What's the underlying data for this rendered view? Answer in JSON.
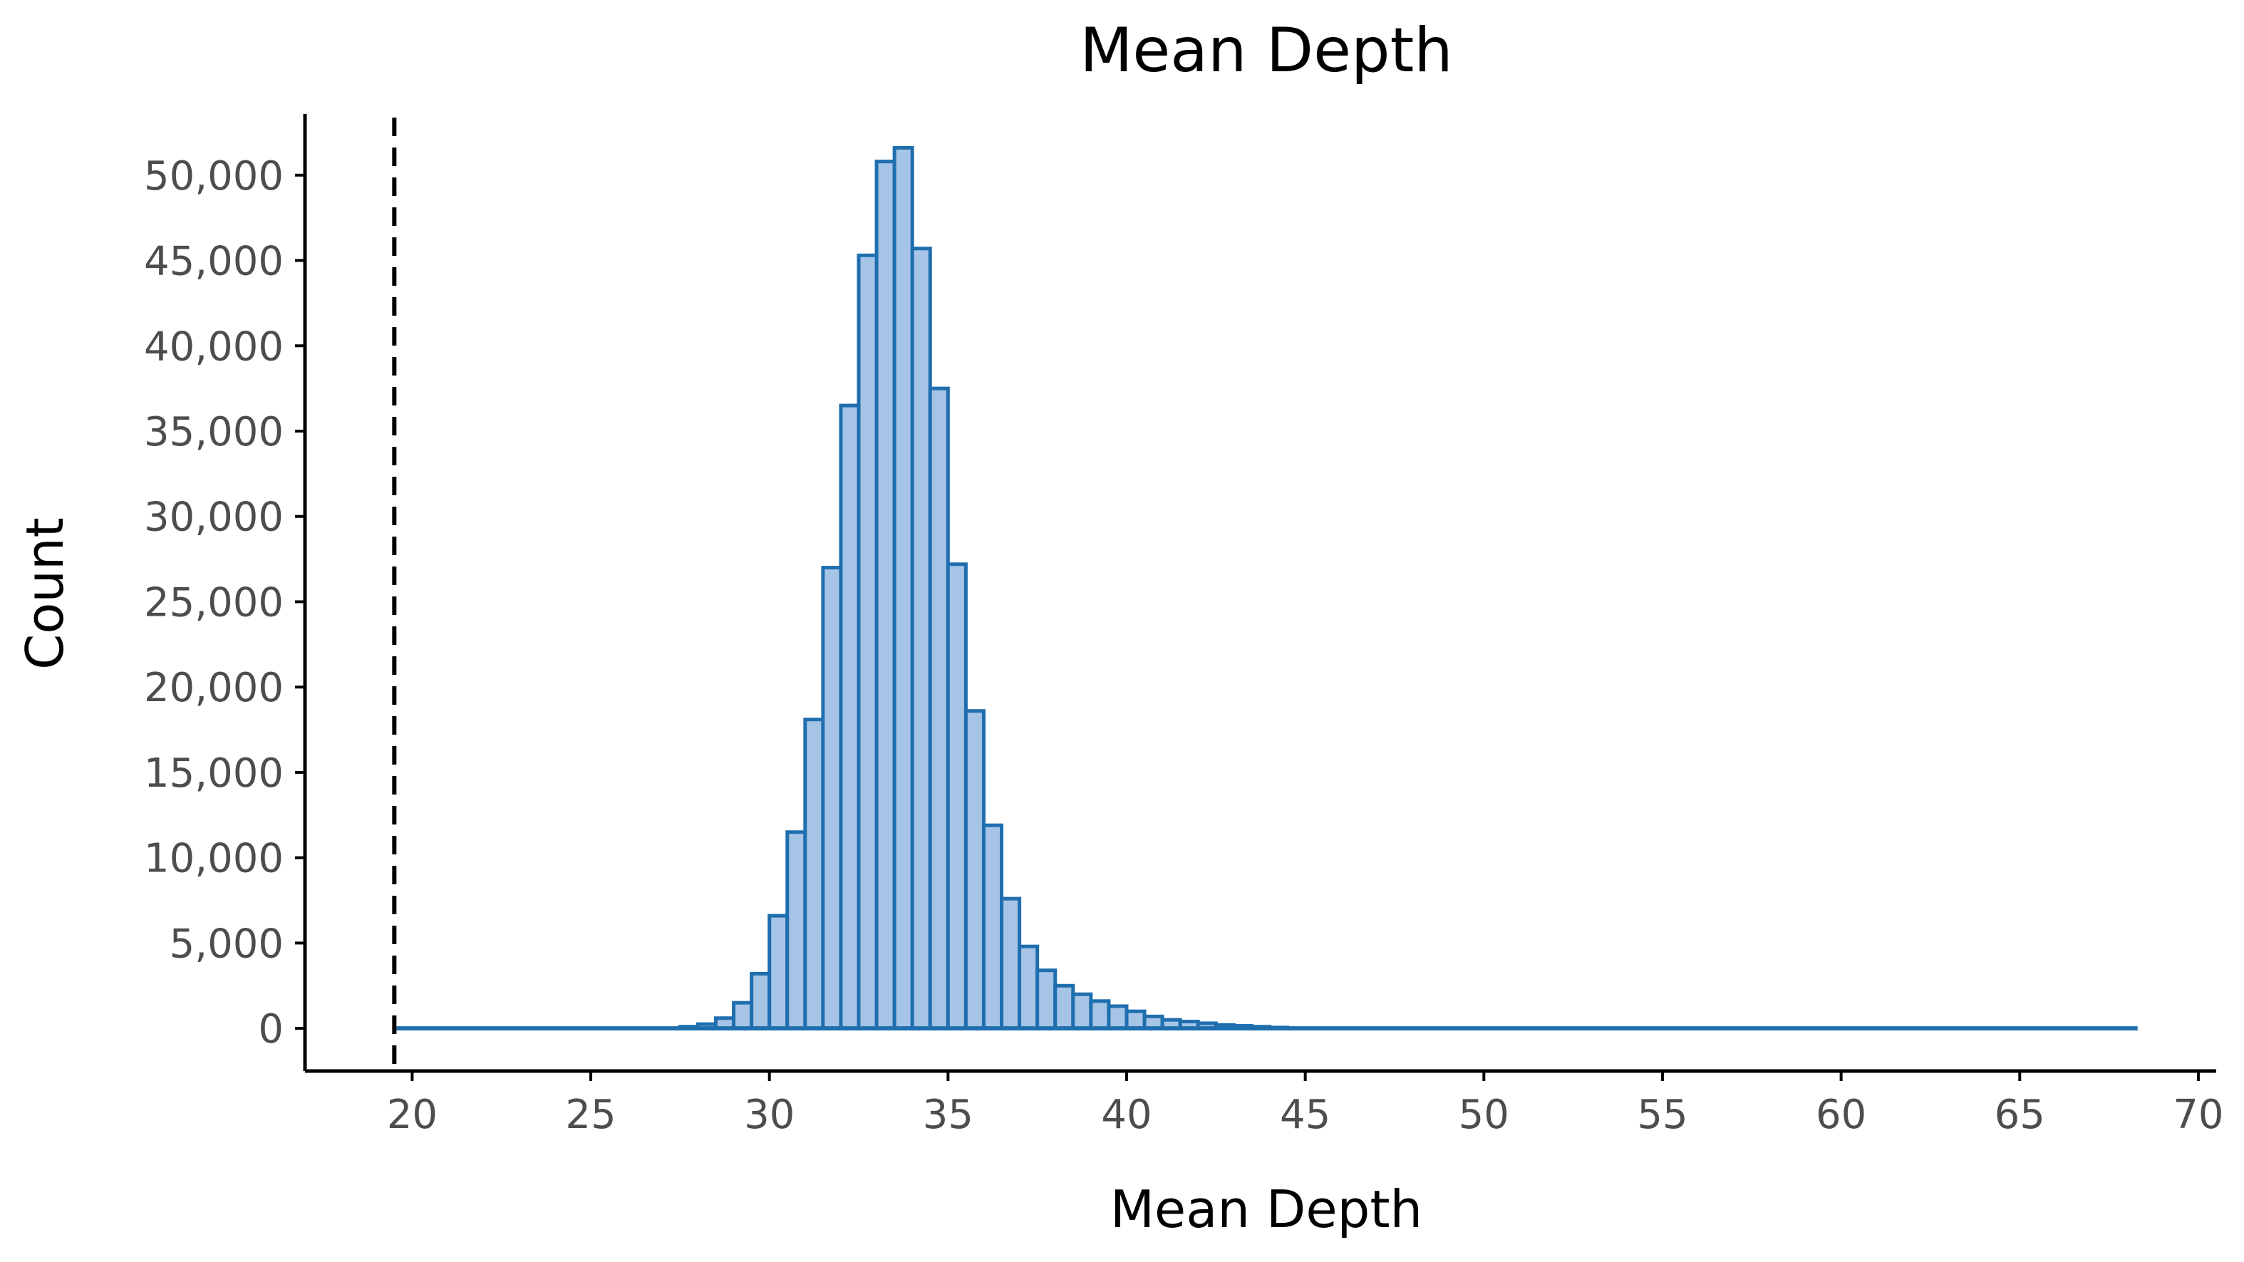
{
  "chart_data": {
    "type": "bar",
    "title": "Mean Depth",
    "xlabel": "Mean Depth",
    "ylabel": "Count",
    "xlim": [
      17,
      70.5
    ],
    "ylim": [
      -2500,
      54000
    ],
    "x_ticks": [
      20,
      25,
      30,
      35,
      40,
      45,
      50,
      55,
      60,
      65,
      70
    ],
    "x_tick_labels": [
      "20",
      "25",
      "30",
      "35",
      "40",
      "45",
      "50",
      "55",
      "60",
      "65",
      "70"
    ],
    "y_ticks": [
      0,
      5000,
      10000,
      15000,
      20000,
      25000,
      30000,
      35000,
      40000,
      45000,
      50000
    ],
    "y_tick_labels": [
      "0",
      "5,000",
      "10,000",
      "15,000",
      "20,000",
      "25,000",
      "30,000",
      "35,000",
      "40,000",
      "45,000",
      "50,000"
    ],
    "grid": false,
    "bin_width": 0.5,
    "threshold_x": 19.5,
    "colors": {
      "bar_fill": "#a6c4e6",
      "bar_edge": "#1f6faf",
      "threshold": "#000000"
    },
    "bins_start": [
      27.5,
      28.0,
      28.5,
      29.0,
      29.5,
      30.0,
      30.5,
      31.0,
      31.5,
      32.0,
      32.5,
      33.0,
      33.5,
      34.0,
      34.5,
      35.0,
      35.5,
      36.0,
      36.5,
      37.0,
      37.5,
      38.0,
      38.5,
      39.0,
      39.5,
      40.0,
      40.5,
      41.0,
      41.5,
      42.0,
      42.5,
      43.0,
      43.5,
      44.0
    ],
    "counts": [
      100,
      250,
      600,
      1500,
      3200,
      6600,
      11500,
      18100,
      27000,
      36500,
      45300,
      50800,
      51600,
      45700,
      37500,
      27200,
      18600,
      11900,
      7600,
      4800,
      3400,
      2500,
      2000,
      1600,
      1300,
      1000,
      700,
      500,
      400,
      300,
      200,
      150,
      100,
      50
    ],
    "baseline_x": [
      19.5,
      68.3
    ]
  }
}
